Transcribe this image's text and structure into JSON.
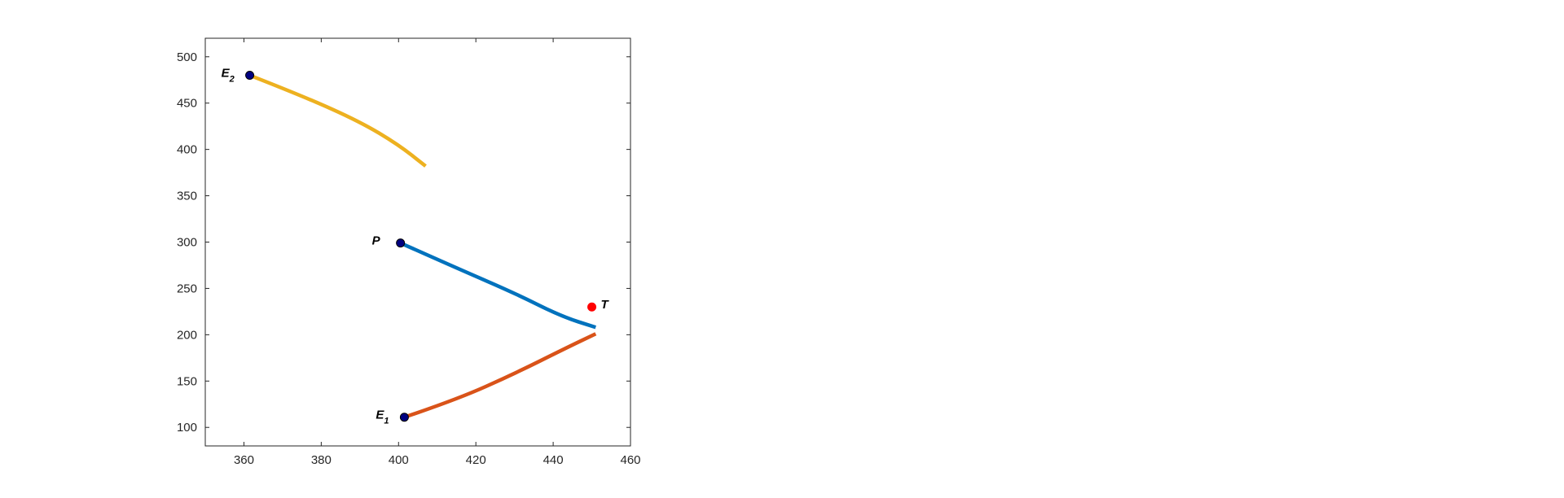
{
  "chart_data": {
    "type": "line",
    "xlim": [
      350,
      460
    ],
    "ylim": [
      80,
      520
    ],
    "xticks": [
      360,
      380,
      400,
      420,
      440,
      460
    ],
    "yticks": [
      100,
      150,
      200,
      250,
      300,
      350,
      400,
      450,
      500
    ],
    "grid": false,
    "legend": "none",
    "series": [
      {
        "key": "yellow",
        "color": "#EDB120",
        "points": [
          [
            361.5,
            480
          ],
          [
            375,
            458
          ],
          [
            390,
            430
          ],
          [
            400,
            405
          ],
          [
            407,
            382
          ]
        ]
      },
      {
        "key": "blue",
        "color": "#0072BD",
        "points": [
          [
            400.5,
            299
          ],
          [
            415,
            272
          ],
          [
            430,
            245
          ],
          [
            442,
            220
          ],
          [
            451,
            208
          ]
        ]
      },
      {
        "key": "orange",
        "color": "#D95319",
        "points": [
          [
            401.5,
            111
          ],
          [
            415,
            130
          ],
          [
            430,
            158
          ],
          [
            443,
            185
          ],
          [
            451,
            201
          ]
        ]
      }
    ],
    "markers": [
      {
        "key": "E2",
        "label": "E",
        "sub": "2",
        "x": 361.5,
        "y": 480,
        "color": "#000080",
        "label_side": "left"
      },
      {
        "key": "P",
        "label": "P",
        "sub": "",
        "x": 400.5,
        "y": 299,
        "color": "#000080",
        "label_side": "left"
      },
      {
        "key": "E1",
        "label": "E",
        "sub": "1",
        "x": 401.5,
        "y": 111,
        "color": "#000080",
        "label_side": "left"
      },
      {
        "key": "T",
        "label": "T",
        "sub": "",
        "x": 450,
        "y": 230,
        "color": "#FF0000",
        "label_side": "right"
      }
    ]
  }
}
